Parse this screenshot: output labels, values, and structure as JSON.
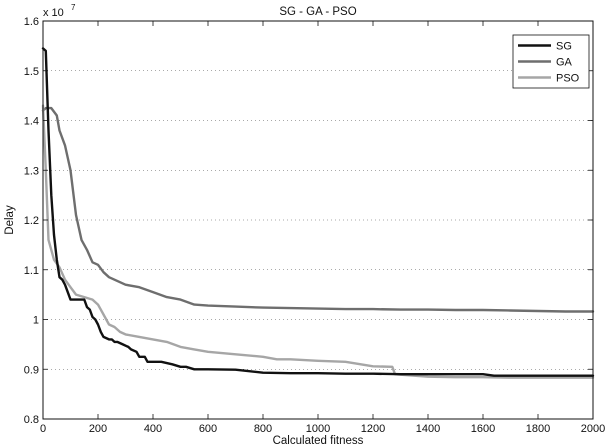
{
  "chart_data": {
    "type": "line",
    "title": "SG - GA - PSO",
    "xlabel": "Calculated fitness",
    "ylabel": "Delay",
    "y_scale_label": "x 10^7",
    "y_exponent_base": "x 10",
    "y_exponent_power": "7",
    "xlim": [
      0,
      2000
    ],
    "ylim": [
      0.8,
      1.6
    ],
    "x_ticks": [
      0,
      200,
      400,
      600,
      800,
      1000,
      1200,
      1400,
      1600,
      1800,
      2000
    ],
    "x_tick_labels": [
      "0",
      "200",
      "400",
      "600",
      "800",
      "1000",
      "1200",
      "1400",
      "1600",
      "1800",
      "2000"
    ],
    "y_ticks": [
      0.8,
      0.9,
      1.0,
      1.1,
      1.2,
      1.3,
      1.4,
      1.5,
      1.6
    ],
    "y_tick_labels": [
      "0.8",
      "0.9",
      "1",
      "1.1",
      "1.2",
      "1.3",
      "1.4",
      "1.5",
      "1.6"
    ],
    "grid": "horizontal dotted",
    "legend_position": "top-right",
    "series": [
      {
        "name": "SG",
        "color": "#111111",
        "x": [
          0,
          10,
          20,
          30,
          40,
          50,
          60,
          70,
          80,
          100,
          110,
          130,
          150,
          160,
          170,
          180,
          190,
          200,
          210,
          220,
          240,
          250,
          260,
          270,
          290,
          310,
          320,
          340,
          350,
          370,
          380,
          400,
          430,
          470,
          500,
          520,
          550,
          600,
          700,
          800,
          900,
          1000,
          1100,
          1200,
          1300,
          1400,
          1500,
          1600,
          1640,
          1700,
          1800,
          1900,
          2000
        ],
        "y": [
          1.545,
          1.54,
          1.38,
          1.25,
          1.17,
          1.12,
          1.085,
          1.08,
          1.07,
          1.04,
          1.04,
          1.04,
          1.04,
          1.025,
          1.02,
          1.005,
          1.0,
          0.99,
          0.975,
          0.965,
          0.96,
          0.96,
          0.955,
          0.955,
          0.95,
          0.945,
          0.94,
          0.935,
          0.925,
          0.925,
          0.915,
          0.915,
          0.915,
          0.91,
          0.905,
          0.905,
          0.9,
          0.9,
          0.899,
          0.893,
          0.892,
          0.892,
          0.891,
          0.891,
          0.89,
          0.89,
          0.89,
          0.89,
          0.887,
          0.887,
          0.887,
          0.887,
          0.887
        ]
      },
      {
        "name": "GA",
        "color": "#6e6e6e",
        "x": [
          0,
          10,
          30,
          50,
          60,
          80,
          100,
          120,
          140,
          160,
          180,
          200,
          220,
          240,
          260,
          280,
          300,
          350,
          400,
          450,
          500,
          550,
          600,
          700,
          800,
          900,
          1000,
          1100,
          1200,
          1300,
          1400,
          1500,
          1600,
          1700,
          1800,
          1900,
          2000
        ],
        "y": [
          1.42,
          1.425,
          1.425,
          1.41,
          1.38,
          1.35,
          1.3,
          1.21,
          1.16,
          1.14,
          1.115,
          1.11,
          1.095,
          1.085,
          1.08,
          1.075,
          1.07,
          1.065,
          1.055,
          1.045,
          1.04,
          1.03,
          1.028,
          1.026,
          1.024,
          1.023,
          1.022,
          1.021,
          1.021,
          1.02,
          1.02,
          1.019,
          1.019,
          1.018,
          1.017,
          1.016,
          1.016
        ]
      },
      {
        "name": "PSO",
        "color": "#a6a6a6",
        "x": [
          0,
          10,
          20,
          30,
          40,
          60,
          80,
          100,
          120,
          150,
          180,
          200,
          220,
          240,
          260,
          280,
          300,
          350,
          400,
          450,
          500,
          550,
          600,
          700,
          800,
          850,
          900,
          1000,
          1100,
          1200,
          1270,
          1280,
          1300,
          1400,
          1500,
          1600,
          1700,
          1800,
          1900,
          2000
        ],
        "y": [
          1.43,
          1.3,
          1.16,
          1.14,
          1.12,
          1.105,
          1.08,
          1.065,
          1.05,
          1.045,
          1.04,
          1.03,
          1.01,
          0.99,
          0.985,
          0.975,
          0.97,
          0.965,
          0.96,
          0.955,
          0.945,
          0.94,
          0.935,
          0.93,
          0.925,
          0.92,
          0.92,
          0.917,
          0.915,
          0.906,
          0.905,
          0.89,
          0.889,
          0.885,
          0.884,
          0.884,
          0.883,
          0.883,
          0.883,
          0.883
        ]
      }
    ]
  }
}
